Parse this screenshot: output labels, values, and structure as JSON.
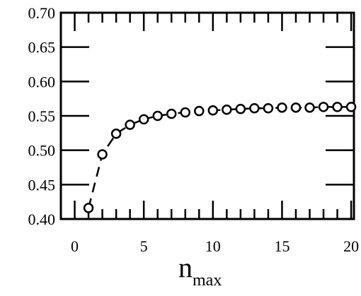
{
  "chart_data": {
    "type": "scatter",
    "xlabel": "n",
    "xlabel_subscript": "max",
    "ylabel": "",
    "xlim": [
      -1.0,
      20.2
    ],
    "ylim": [
      0.4,
      0.7
    ],
    "x_ticks": [
      0,
      5,
      10,
      15,
      20
    ],
    "x_tick_labels": [
      "0",
      "5",
      "10",
      "15",
      "20"
    ],
    "y_ticks": [
      0.4,
      0.45,
      0.5,
      0.55,
      0.6,
      0.65,
      0.7
    ],
    "y_tick_labels": [
      "0.40",
      "0.45",
      "0.50",
      "0.55",
      "0.60",
      "0.65",
      "0.70"
    ],
    "x_minor_step": 1,
    "grid": false,
    "legend": "none",
    "series": [
      {
        "marker": "open-circle",
        "line_style": "dashed",
        "color": "#000000",
        "x": [
          1,
          2,
          3,
          4,
          5,
          6,
          7,
          8,
          9,
          10,
          11,
          12,
          13,
          14,
          15,
          16,
          17,
          18,
          19,
          20
        ],
        "y": [
          0.416,
          0.494,
          0.524,
          0.537,
          0.545,
          0.55,
          0.553,
          0.555,
          0.557,
          0.558,
          0.559,
          0.56,
          0.561,
          0.561,
          0.562,
          0.562,
          0.562,
          0.563,
          0.563,
          0.563
        ]
      }
    ]
  }
}
